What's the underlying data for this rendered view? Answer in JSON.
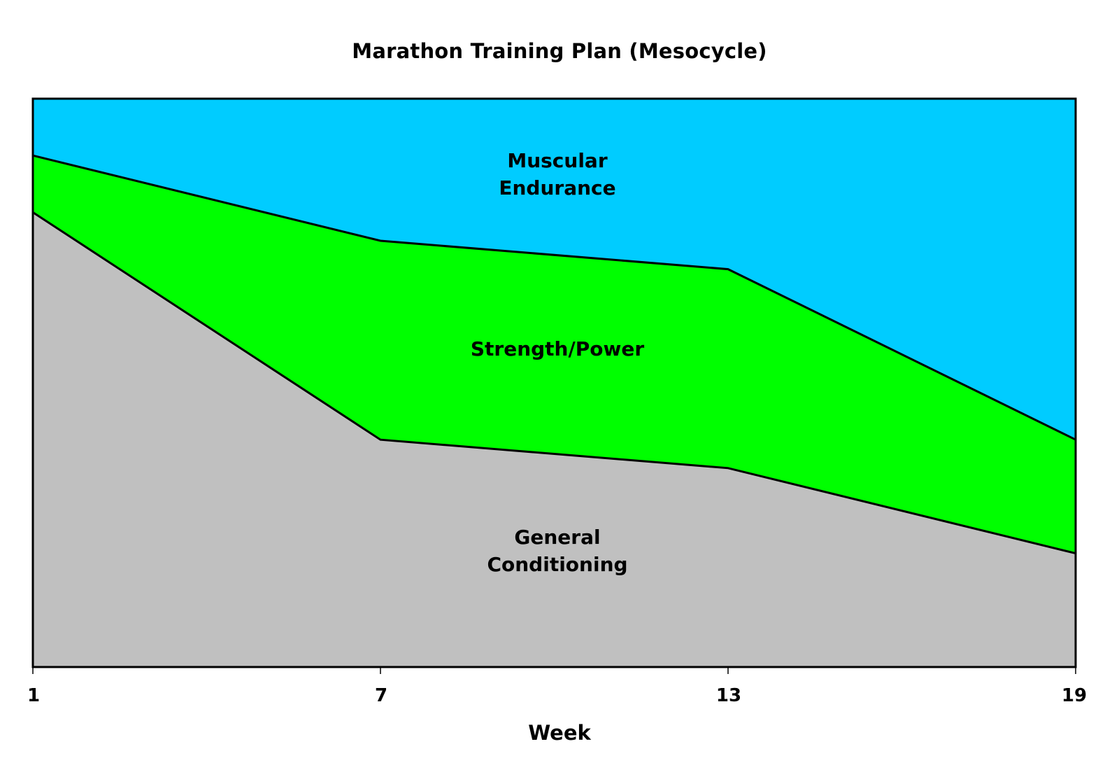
{
  "chart_data": {
    "type": "area",
    "stacked": true,
    "percent_stacked": true,
    "title": "Marathon Training Plan (Mesocycle)",
    "xlabel": "Week",
    "ylabel": "",
    "categories": [
      "1",
      "7",
      "13",
      "19"
    ],
    "series": [
      {
        "name": "General Conditioning",
        "color": "#c0c0c0",
        "values": [
          80,
          40,
          35,
          20
        ]
      },
      {
        "name": "Strength/Power",
        "color": "#00ff00",
        "values": [
          10,
          35,
          35,
          20
        ]
      },
      {
        "name": "Muscular Endurance",
        "color": "#00ccff",
        "values": [
          10,
          25,
          30,
          60
        ]
      }
    ],
    "ylim": [
      0,
      100
    ],
    "grid": false,
    "legend": "none (labels placed inside areas)",
    "area_labels": [
      {
        "lines": [
          "Muscular",
          "Endurance"
        ]
      },
      {
        "lines": [
          "Strength/Power"
        ]
      },
      {
        "lines": [
          "General",
          "Conditioning"
        ]
      }
    ]
  },
  "labels": {
    "title": "Marathon Training Plan (Mesocycle)",
    "xlabel": "Week",
    "ticks": [
      "1",
      "7",
      "13",
      "19"
    ],
    "muscular_1": "Muscular",
    "muscular_2": "Endurance",
    "strength": "Strength/Power",
    "general_1": "General",
    "general_2": "Conditioning"
  }
}
